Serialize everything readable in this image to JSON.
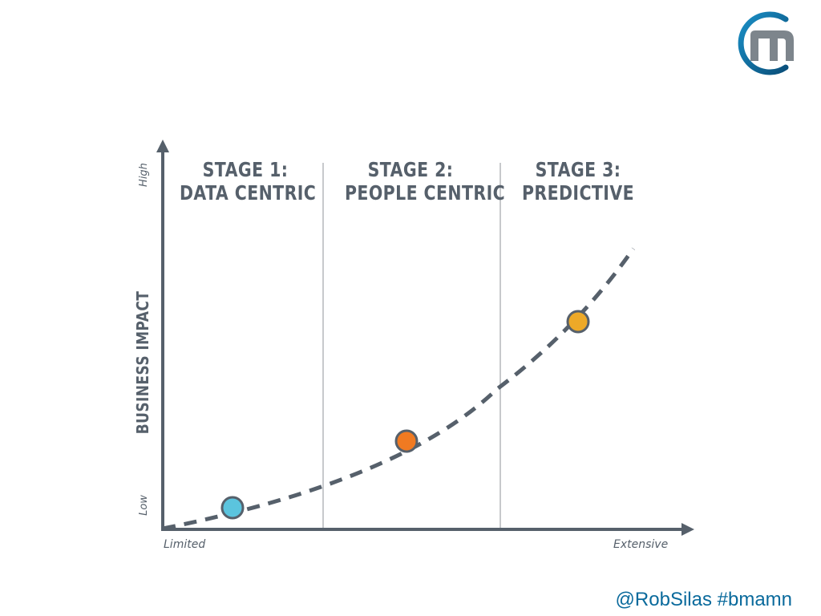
{
  "brand": {
    "accent": "#0a6a9c",
    "logo_name": "m-logo"
  },
  "footer": {
    "handle": "@RobSilas #bmamn"
  },
  "diagram": {
    "stages": [
      {
        "line1": "STAGE 1:",
        "line2": "DATA CENTRIC",
        "dot_color": "#5bc4de"
      },
      {
        "line1": "STAGE 2:",
        "line2": "PEOPLE CENTRIC",
        "dot_color": "#f07a22"
      },
      {
        "line1": "STAGE 3:",
        "line2": "PREDICTIVE",
        "dot_color": "#eda928"
      }
    ],
    "y_axis": {
      "title": "BUSINESS IMPACT",
      "high": "High",
      "low": "Low"
    },
    "x_axis": {
      "low": "Limited",
      "high": "Extensive"
    },
    "colors": {
      "axis": "#56606b",
      "divider": "#c7c9cc",
      "curve": "#56606b",
      "dot_stroke": "#56606b"
    }
  }
}
